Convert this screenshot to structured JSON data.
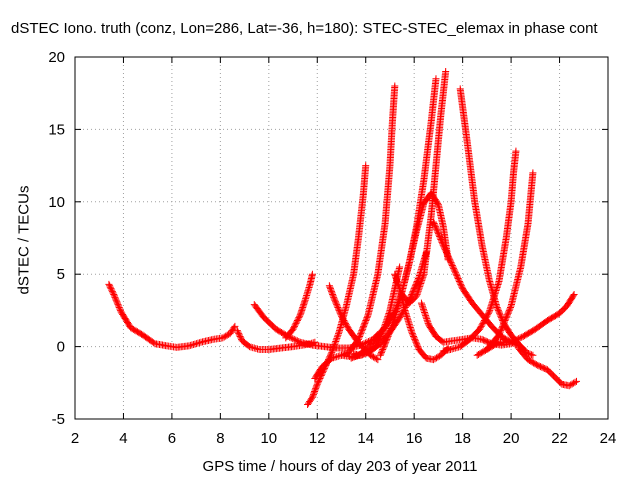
{
  "chart_data": {
    "type": "scatter",
    "title": "dSTEC Iono. truth (conz, Lon=286, Lat=-36, h=180): STEC-STEC_elemax in phase cont",
    "xlabel": "GPS time / hours of day 203 of year 2011",
    "ylabel": "dSTEC  / TECUs",
    "xlim": [
      2,
      24
    ],
    "ylim": [
      -5,
      20
    ],
    "xticks": [
      2,
      4,
      6,
      8,
      10,
      12,
      14,
      16,
      18,
      20,
      22,
      24
    ],
    "yticks": [
      -5,
      0,
      5,
      10,
      15,
      20
    ],
    "grid": true,
    "marker": "+",
    "color": "#ff0000",
    "series": [
      {
        "x": [
          3.4,
          3.6,
          3.9,
          4.3,
          4.8,
          5.3,
          5.8,
          6.2,
          6.7,
          7.2,
          7.7,
          8.1,
          8.4,
          8.6
        ],
        "y": [
          4.3,
          3.6,
          2.4,
          1.3,
          0.8,
          0.2,
          0.05,
          -0.05,
          0.05,
          0.3,
          0.5,
          0.6,
          0.9,
          1.4
        ]
      },
      {
        "x": [
          8.7,
          8.9,
          9.2,
          9.6,
          10.0,
          10.5,
          11.0,
          11.4,
          11.7,
          11.9
        ],
        "y": [
          1.1,
          0.4,
          0.0,
          -0.2,
          -0.2,
          -0.1,
          0.0,
          0.1,
          0.2,
          0.3
        ]
      },
      {
        "x": [
          9.4,
          9.8,
          10.3,
          10.8,
          11.3,
          11.8,
          12.3,
          12.8,
          13.3,
          13.8,
          14.3,
          14.6
        ],
        "y": [
          2.9,
          2.0,
          1.2,
          0.7,
          0.3,
          0.1,
          0.0,
          -0.1,
          -0.1,
          0.1,
          0.5,
          1.0
        ]
      },
      {
        "x": [
          10.7,
          11.0,
          11.3,
          11.5,
          11.7,
          11.8
        ],
        "y": [
          0.6,
          1.2,
          2.2,
          3.2,
          4.3,
          5.0
        ]
      },
      {
        "x": [
          11.6,
          11.8,
          12.0,
          12.3,
          12.6,
          12.9,
          13.2,
          13.5,
          13.7,
          13.9,
          14.0
        ],
        "y": [
          -4.0,
          -3.5,
          -2.6,
          -1.5,
          -0.4,
          1.0,
          2.8,
          5.0,
          7.5,
          10.5,
          12.5
        ]
      },
      {
        "x": [
          11.9,
          12.2,
          12.6,
          13.0,
          13.4,
          13.8,
          14.2,
          14.6,
          15.0,
          15.4,
          15.8,
          16.2,
          16.5
        ],
        "y": [
          -2.2,
          -1.4,
          -0.8,
          -0.6,
          -0.7,
          -0.6,
          -0.3,
          0.2,
          1.0,
          2.0,
          3.2,
          4.8,
          6.5
        ]
      },
      {
        "x": [
          12.5,
          12.7,
          13.0,
          13.3,
          13.6,
          13.9,
          14.2,
          14.5
        ],
        "y": [
          4.2,
          3.3,
          2.1,
          1.2,
          0.5,
          -0.1,
          -0.6,
          -0.9
        ]
      },
      {
        "x": [
          13.0,
          13.3,
          13.7,
          14.1,
          14.5,
          14.8,
          15.0,
          15.1,
          15.2
        ],
        "y": [
          -0.6,
          -0.4,
          0.5,
          2.2,
          5.0,
          8.5,
          12.5,
          15.5,
          18.0
        ]
      },
      {
        "x": [
          13.5,
          13.8,
          14.1,
          14.4,
          14.7,
          15.0,
          15.2,
          15.4
        ],
        "y": [
          -0.5,
          -0.6,
          -0.4,
          0.0,
          1.0,
          2.5,
          4.0,
          5.5
        ]
      },
      {
        "x": [
          13.4,
          13.7,
          14.0,
          14.3,
          14.6,
          14.9,
          15.2,
          15.5,
          15.8,
          16.1,
          16.4,
          16.7,
          16.9
        ],
        "y": [
          -0.8,
          -0.6,
          -0.2,
          0.3,
          0.9,
          1.6,
          2.4,
          3.8,
          5.8,
          8.3,
          11.5,
          15.5,
          18.5
        ]
      },
      {
        "x": [
          15.2,
          15.4,
          15.6,
          15.9,
          16.2,
          16.5,
          16.8,
          17.1,
          17.4
        ],
        "y": [
          5.0,
          4.0,
          2.6,
          1.0,
          -0.2,
          -0.8,
          -0.9,
          -0.6,
          -0.1
        ]
      },
      {
        "x": [
          14.6,
          14.9,
          15.2,
          15.5,
          15.8,
          16.1,
          16.4,
          16.7,
          17.0,
          17.2,
          17.4
        ],
        "y": [
          -0.6,
          0.6,
          2.0,
          3.8,
          5.8,
          8.0,
          9.9,
          10.6,
          9.8,
          8.3,
          6.0
        ]
      },
      {
        "x": [
          15.5,
          15.8,
          16.1,
          16.4,
          16.7,
          16.9,
          17.1,
          17.3
        ],
        "y": [
          3.6,
          3.0,
          3.5,
          5.0,
          9.0,
          12.5,
          16.0,
          19.0
        ]
      },
      {
        "x": [
          16.8,
          17.2,
          17.6,
          18.0,
          18.4,
          18.8,
          19.2,
          19.6,
          20.0,
          20.4,
          20.6
        ],
        "y": [
          8.6,
          7.0,
          5.5,
          4.0,
          3.0,
          2.2,
          1.4,
          0.7,
          0.3,
          0.0,
          -0.3
        ]
      },
      {
        "x": [
          17.2,
          17.5,
          17.9,
          18.3,
          18.7,
          19.1,
          19.5,
          19.8,
          20.0,
          20.1,
          20.2
        ],
        "y": [
          -0.3,
          -0.2,
          0.0,
          0.5,
          1.2,
          2.4,
          4.5,
          7.5,
          10.0,
          12.0,
          13.5
        ]
      },
      {
        "x": [
          17.9,
          18.2,
          18.5,
          18.8,
          19.1,
          19.4,
          19.7,
          20.0,
          20.3,
          20.6,
          20.9
        ],
        "y": [
          17.8,
          14.0,
          10.0,
          7.0,
          4.6,
          2.8,
          1.6,
          0.8,
          0.2,
          -0.4,
          -0.6
        ]
      },
      {
        "x": [
          18.6,
          19.0,
          19.5,
          20.0,
          20.4,
          20.7,
          20.9
        ],
        "y": [
          -0.6,
          -0.2,
          0.8,
          2.8,
          5.5,
          8.5,
          12.0
        ]
      },
      {
        "x": [
          19.0,
          19.5,
          20.0,
          20.5,
          21.0,
          21.5,
          22.0,
          22.3,
          22.6
        ],
        "y": [
          -0.2,
          0.3,
          0.3,
          0.7,
          1.2,
          1.8,
          2.3,
          2.8,
          3.6
        ]
      },
      {
        "x": [
          20.3,
          20.7,
          21.1,
          21.5,
          21.8,
          22.1,
          22.4,
          22.7
        ],
        "y": [
          -0.1,
          -0.9,
          -1.3,
          -1.6,
          -2.1,
          -2.6,
          -2.7,
          -2.4
        ]
      },
      {
        "x": [
          16.3,
          16.6,
          16.9,
          17.2,
          17.6,
          18.0,
          18.4,
          18.8,
          19.2,
          19.6,
          20.0
        ],
        "y": [
          3.0,
          1.5,
          0.7,
          0.3,
          0.4,
          0.5,
          0.6,
          0.5,
          0.2,
          0.1,
          0.2
        ]
      }
    ]
  }
}
